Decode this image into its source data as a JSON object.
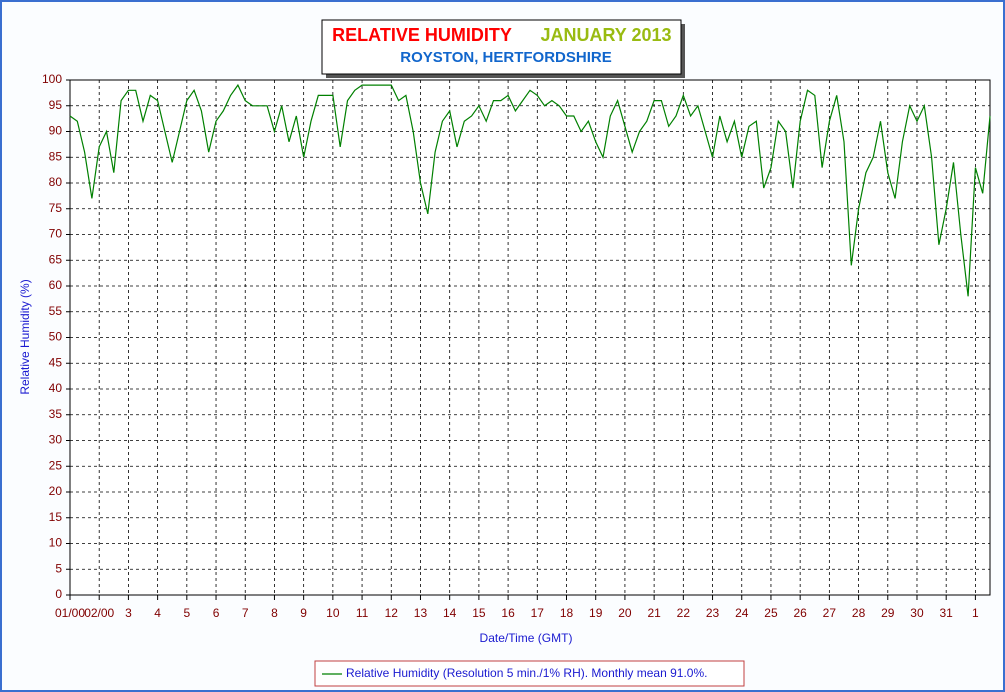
{
  "chart_data": {
    "type": "line",
    "title": "RELATIVE HUMIDITY",
    "title_period": "JANUARY 2013",
    "subtitle": "ROYSTON, HERTFORDSHIRE",
    "title_color": "#ff0000",
    "title_period_color": "#99bb11",
    "subtitle_color": "#1166cc",
    "xlabel": "Date/Time (GMT)",
    "ylabel": "Relative Humidity (%)",
    "x": [
      0,
      0.25,
      0.5,
      0.75,
      1,
      1.25,
      1.5,
      1.75,
      2,
      2.25,
      2.5,
      2.75,
      3,
      3.25,
      3.5,
      3.75,
      4,
      4.25,
      4.5,
      4.75,
      5,
      5.25,
      5.5,
      5.75,
      6,
      6.25,
      6.5,
      6.75,
      7,
      7.25,
      7.5,
      7.75,
      8,
      8.25,
      8.5,
      8.75,
      9,
      9.25,
      9.5,
      9.75,
      10,
      10.25,
      10.5,
      10.75,
      11,
      11.25,
      11.5,
      11.75,
      12,
      12.25,
      12.5,
      12.75,
      13,
      13.25,
      13.5,
      13.75,
      14,
      14.25,
      14.5,
      14.75,
      15,
      15.25,
      15.5,
      15.75,
      16,
      16.25,
      16.5,
      16.75,
      17,
      17.25,
      17.5,
      17.75,
      18,
      18.25,
      18.5,
      18.75,
      19,
      19.25,
      19.5,
      19.75,
      20,
      20.25,
      20.5,
      20.75,
      21,
      21.25,
      21.5,
      21.75,
      22,
      22.25,
      22.5,
      22.75,
      23,
      23.25,
      23.5,
      23.75,
      24,
      24.25,
      24.5,
      24.75,
      25,
      25.25,
      25.5,
      25.75,
      26,
      26.25,
      26.5,
      26.75,
      27,
      27.25,
      27.5,
      27.75,
      28,
      28.25,
      28.5,
      28.75,
      29,
      29.25,
      29.5,
      29.75,
      30,
      30.25,
      30.5,
      30.75,
      31,
      31.25,
      31.5
    ],
    "series": [
      {
        "name": "Relative Humidity (Resolution 5 min./1% RH). Monthly mean 91.0%.",
        "color": "#008000",
        "values": [
          93,
          92,
          86,
          77,
          87,
          90,
          82,
          96,
          98,
          98,
          92,
          97,
          96,
          90,
          84,
          90,
          96,
          98,
          94,
          86,
          92,
          94,
          97,
          99,
          96,
          95,
          95,
          95,
          90,
          95,
          88,
          93,
          85,
          92,
          97,
          97,
          97,
          87,
          96,
          98,
          99,
          99,
          99,
          99,
          99,
          96,
          97,
          90,
          80,
          74,
          86,
          92,
          94,
          87,
          92,
          93,
          95,
          92,
          96,
          96,
          97,
          94,
          96,
          98,
          97,
          95,
          96,
          95,
          93,
          93,
          90,
          92,
          88,
          85,
          93,
          96,
          91,
          86,
          90,
          92,
          96,
          96,
          91,
          93,
          97,
          93,
          95,
          90,
          85,
          93,
          88,
          92,
          85,
          91,
          92,
          79,
          83,
          92,
          90,
          79,
          92,
          98,
          97,
          83,
          92,
          97,
          88,
          64,
          75,
          82,
          85,
          92,
          82,
          77,
          88,
          95,
          92,
          95,
          85,
          68,
          75,
          84,
          70,
          58,
          83,
          78,
          93
        ]
      }
    ],
    "xlim": [
      0,
      31.5
    ],
    "ylim": [
      0,
      100
    ],
    "xticks": [
      {
        "value": 0,
        "label": "01/00"
      },
      {
        "value": 1,
        "label": "02/00"
      },
      {
        "value": 2,
        "label": "3"
      },
      {
        "value": 3,
        "label": "4"
      },
      {
        "value": 4,
        "label": "5"
      },
      {
        "value": 5,
        "label": "6"
      },
      {
        "value": 6,
        "label": "7"
      },
      {
        "value": 7,
        "label": "8"
      },
      {
        "value": 8,
        "label": "9"
      },
      {
        "value": 9,
        "label": "10"
      },
      {
        "value": 10,
        "label": "11"
      },
      {
        "value": 11,
        "label": "12"
      },
      {
        "value": 12,
        "label": "13"
      },
      {
        "value": 13,
        "label": "14"
      },
      {
        "value": 14,
        "label": "15"
      },
      {
        "value": 15,
        "label": "16"
      },
      {
        "value": 16,
        "label": "17"
      },
      {
        "value": 17,
        "label": "18"
      },
      {
        "value": 18,
        "label": "19"
      },
      {
        "value": 19,
        "label": "20"
      },
      {
        "value": 20,
        "label": "21"
      },
      {
        "value": 21,
        "label": "22"
      },
      {
        "value": 22,
        "label": "23"
      },
      {
        "value": 23,
        "label": "24"
      },
      {
        "value": 24,
        "label": "25"
      },
      {
        "value": 25,
        "label": "26"
      },
      {
        "value": 26,
        "label": "27"
      },
      {
        "value": 27,
        "label": "28"
      },
      {
        "value": 28,
        "label": "29"
      },
      {
        "value": 29,
        "label": "30"
      },
      {
        "value": 30,
        "label": "31"
      },
      {
        "value": 31,
        "label": "1"
      }
    ],
    "yticks": [
      0,
      5,
      10,
      15,
      20,
      25,
      30,
      35,
      40,
      45,
      50,
      55,
      60,
      65,
      70,
      75,
      80,
      85,
      90,
      95,
      100
    ],
    "grid": true
  }
}
